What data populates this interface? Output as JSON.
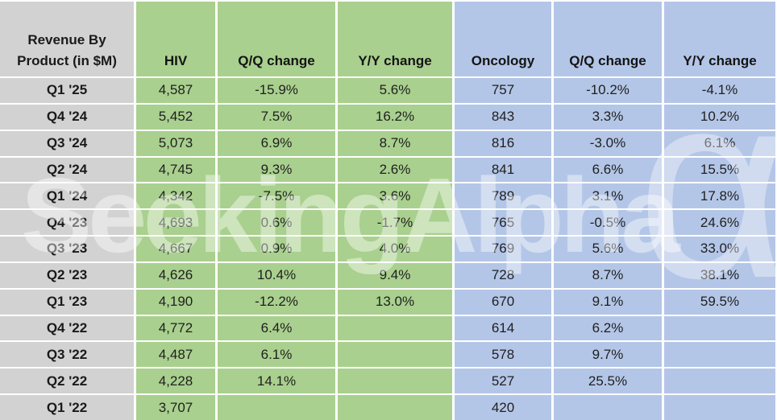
{
  "table": {
    "corner": {
      "line1": "Revenue By",
      "line2": "Product (in $M)"
    },
    "columns": [
      "HIV",
      "Q/Q change",
      "Y/Y change",
      "Oncology",
      "Q/Q change",
      "Y/Y change"
    ],
    "rows": [
      {
        "cells": [
          "Q1 '25",
          "4,587",
          "-15.9%",
          "5.6%",
          "757",
          "-10.2%",
          "-4.1%"
        ]
      },
      {
        "cells": [
          "Q4 '24",
          "5,452",
          "7.5%",
          "16.2%",
          "843",
          "3.3%",
          "10.2%"
        ]
      },
      {
        "cells": [
          "Q3 '24",
          "5,073",
          "6.9%",
          "8.7%",
          "816",
          "-3.0%",
          "6.1%"
        ]
      },
      {
        "cells": [
          "Q2 '24",
          "4,745",
          "9.3%",
          "2.6%",
          "841",
          "6.6%",
          "15.5%"
        ]
      },
      {
        "cells": [
          "Q1 '24",
          "4,342",
          "-7.5%",
          "3.6%",
          "789",
          "3.1%",
          "17.8%"
        ]
      },
      {
        "cells": [
          "Q4 '23",
          "4,693",
          "0.6%",
          "-1.7%",
          "765",
          "-0.5%",
          "24.6%"
        ]
      },
      {
        "cells": [
          "Q3 '23",
          "4,667",
          "0.9%",
          "4.0%",
          "769",
          "5.6%",
          "33.0%"
        ]
      },
      {
        "cells": [
          "Q2 '23",
          "4,626",
          "10.4%",
          "9.4%",
          "728",
          "8.7%",
          "38.1%"
        ]
      },
      {
        "cells": [
          "Q1 '23",
          "4,190",
          "-12.2%",
          "13.0%",
          "670",
          "9.1%",
          "59.5%"
        ]
      },
      {
        "cells": [
          "Q4 '22",
          "4,772",
          "6.4%",
          "",
          "614",
          "6.2%",
          ""
        ]
      },
      {
        "cells": [
          "Q3 '22",
          "4,487",
          "6.1%",
          "",
          "578",
          "9.7%",
          ""
        ]
      },
      {
        "cells": [
          "Q2 '22",
          "4,228",
          "14.1%",
          "",
          "527",
          "25.5%",
          ""
        ]
      },
      {
        "cells": [
          "Q1 '22",
          "3,707",
          "",
          "",
          "420",
          "",
          ""
        ]
      }
    ]
  },
  "watermark": {
    "text": "SeekingAlpha",
    "symbol": "α"
  },
  "colors": {
    "label_gray": "#d2d2d2",
    "hiv_green": "#a9d08e",
    "oncology_blue": "#b4c6e7",
    "text": "#1f1f1f",
    "gridline": "#ffffff"
  },
  "chart_data": {
    "type": "table",
    "title": "Revenue By Product (in $M)",
    "categories": [
      "Q1 '25",
      "Q4 '24",
      "Q3 '24",
      "Q2 '24",
      "Q1 '24",
      "Q4 '23",
      "Q3 '23",
      "Q2 '23",
      "Q1 '23",
      "Q4 '22",
      "Q3 '22",
      "Q2 '22",
      "Q1 '22"
    ],
    "series": [
      {
        "name": "HIV",
        "values": [
          4587,
          5452,
          5073,
          4745,
          4342,
          4693,
          4667,
          4626,
          4190,
          4772,
          4487,
          4228,
          3707
        ]
      },
      {
        "name": "HIV Q/Q change",
        "values": [
          "-15.9%",
          "7.5%",
          "6.9%",
          "9.3%",
          "-7.5%",
          "0.6%",
          "0.9%",
          "10.4%",
          "-12.2%",
          "6.4%",
          "6.1%",
          "14.1%",
          ""
        ]
      },
      {
        "name": "HIV Y/Y change",
        "values": [
          "5.6%",
          "16.2%",
          "8.7%",
          "2.6%",
          "3.6%",
          "-1.7%",
          "4.0%",
          "9.4%",
          "13.0%",
          "",
          "",
          "",
          ""
        ]
      },
      {
        "name": "Oncology",
        "values": [
          757,
          843,
          816,
          841,
          789,
          765,
          769,
          728,
          670,
          614,
          578,
          527,
          420
        ]
      },
      {
        "name": "Oncology Q/Q change",
        "values": [
          "-10.2%",
          "3.3%",
          "-3.0%",
          "6.6%",
          "3.1%",
          "-0.5%",
          "5.6%",
          "8.7%",
          "9.1%",
          "6.2%",
          "9.7%",
          "25.5%",
          ""
        ]
      },
      {
        "name": "Oncology Y/Y change",
        "values": [
          "-4.1%",
          "10.2%",
          "6.1%",
          "15.5%",
          "17.8%",
          "24.6%",
          "33.0%",
          "38.1%",
          "59.5%",
          "",
          "",
          "",
          ""
        ]
      }
    ]
  }
}
